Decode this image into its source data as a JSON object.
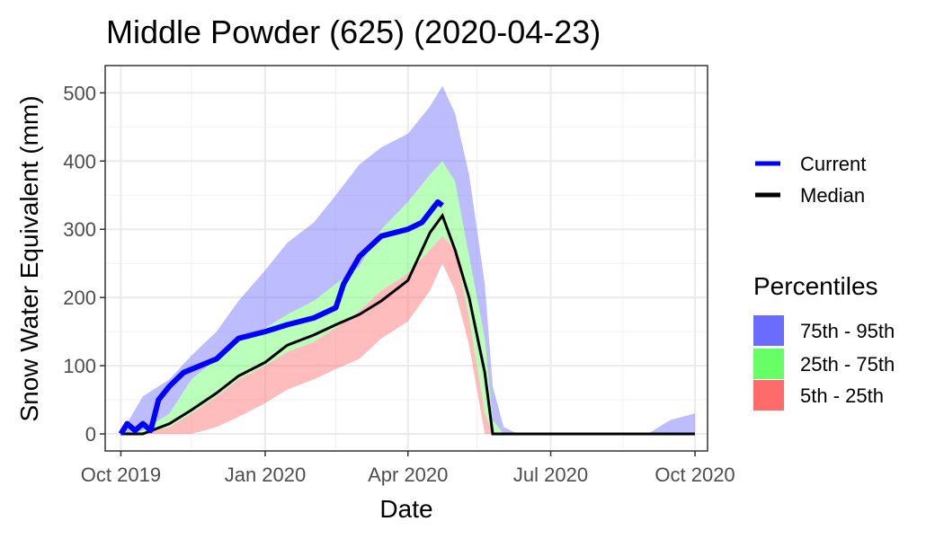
{
  "chart_data": {
    "type": "area",
    "title": "Middle Powder (625) (2020-04-23)",
    "xlabel": "Date",
    "ylabel": "Snow Water Equivalent (mm)",
    "x_ticks": [
      "Oct 2019",
      "Jan 2020",
      "Apr 2020",
      "Jul 2020",
      "Oct 2020"
    ],
    "y_ticks": [
      0,
      100,
      200,
      300,
      400,
      500
    ],
    "xlim": [
      "2019-09-21",
      "2020-10-09"
    ],
    "ylim": [
      -25,
      540
    ],
    "grid": true,
    "legend_position": "right",
    "line_legend": [
      {
        "label": "Current",
        "color": "#0000ff"
      },
      {
        "label": "Median",
        "color": "#000000"
      }
    ],
    "percentile_title": "Percentiles",
    "percentile_legend": [
      {
        "label": "75th - 95th",
        "color": "#6b6bff"
      },
      {
        "label": "25th - 75th",
        "color": "#66ff66"
      },
      {
        "label": "5th - 25th",
        "color": "#ff6b6b"
      }
    ],
    "x": [
      "2019-10-01",
      "2019-10-15",
      "2019-11-01",
      "2019-11-15",
      "2019-12-01",
      "2019-12-15",
      "2020-01-01",
      "2020-01-15",
      "2020-02-01",
      "2020-02-15",
      "2020-03-01",
      "2020-03-15",
      "2020-04-01",
      "2020-04-15",
      "2020-04-23",
      "2020-05-01",
      "2020-05-10",
      "2020-05-20",
      "2020-05-25",
      "2020-06-01",
      "2020-06-10",
      "2020-06-15",
      "2020-06-20",
      "2020-07-01",
      "2020-08-01",
      "2020-09-01",
      "2020-09-15",
      "2020-10-01"
    ],
    "p05": [
      0,
      0,
      0,
      0,
      10,
      25,
      45,
      65,
      80,
      95,
      110,
      140,
      165,
      210,
      250,
      210,
      130,
      0,
      0,
      0,
      0,
      0,
      0,
      0,
      0,
      0,
      0,
      0
    ],
    "p25": [
      0,
      0,
      10,
      30,
      55,
      80,
      100,
      120,
      135,
      155,
      180,
      210,
      235,
      270,
      290,
      270,
      170,
      30,
      0,
      0,
      0,
      0,
      0,
      0,
      0,
      0,
      0,
      0
    ],
    "p75": [
      0,
      5,
      30,
      80,
      110,
      135,
      155,
      175,
      195,
      220,
      245,
      300,
      340,
      380,
      400,
      370,
      260,
      140,
      20,
      0,
      0,
      0,
      0,
      0,
      0,
      0,
      0,
      0
    ],
    "p95": [
      0,
      55,
      80,
      115,
      150,
      195,
      240,
      280,
      310,
      350,
      395,
      420,
      440,
      480,
      510,
      470,
      380,
      220,
      70,
      10,
      0,
      0,
      0,
      0,
      0,
      0,
      20,
      30
    ],
    "median": [
      0,
      0,
      15,
      35,
      60,
      85,
      105,
      130,
      145,
      160,
      175,
      195,
      225,
      295,
      320,
      270,
      200,
      90,
      0,
      0,
      0,
      0,
      0,
      0,
      0,
      0,
      0,
      0
    ],
    "current_x": [
      "2019-10-01",
      "2019-10-05",
      "2019-10-10",
      "2019-10-15",
      "2019-10-20",
      "2019-10-25",
      "2019-11-01",
      "2019-11-10",
      "2019-12-01",
      "2019-12-15",
      "2020-01-01",
      "2020-01-15",
      "2020-02-01",
      "2020-02-15",
      "2020-02-20",
      "2020-03-01",
      "2020-03-15",
      "2020-04-01",
      "2020-04-10",
      "2020-04-20",
      "2020-04-23"
    ],
    "current": [
      0,
      15,
      5,
      15,
      5,
      50,
      70,
      90,
      110,
      140,
      150,
      160,
      170,
      185,
      220,
      260,
      290,
      300,
      310,
      340,
      335
    ]
  }
}
